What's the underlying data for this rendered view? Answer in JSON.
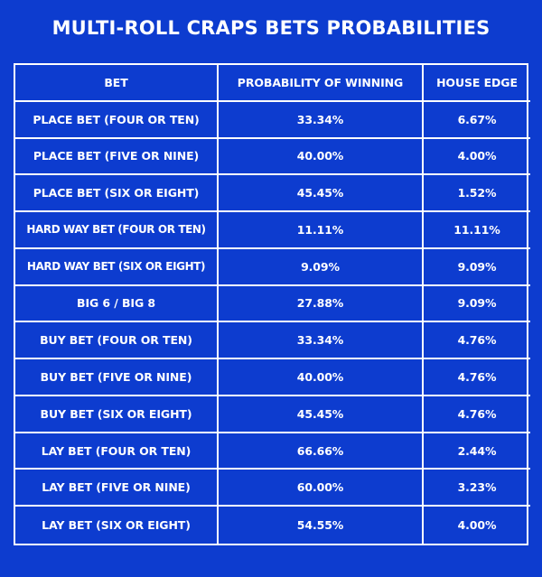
{
  "title": "MULTI-ROLL CRAPS BETS PROBABILITIES",
  "colors": {
    "background": "#0d3ccf",
    "text": "#ffffff",
    "border": "#ffffff"
  },
  "table": {
    "headers": [
      "BET",
      "PROBABILITY OF WINNING",
      "HOUSE EDGE"
    ],
    "rows": [
      {
        "bet": "PLACE BET (FOUR OR TEN)",
        "probability": "33.34%",
        "house_edge": "6.67%"
      },
      {
        "bet": "PLACE BET (FIVE OR NINE)",
        "probability": "40.00%",
        "house_edge": "4.00%"
      },
      {
        "bet": "PLACE BET (SIX OR EIGHT)",
        "probability": "45.45%",
        "house_edge": "1.52%"
      },
      {
        "bet": "HARD WAY BET (FOUR OR TEN)",
        "probability": "11.11%",
        "house_edge": "11.11%"
      },
      {
        "bet": "HARD WAY BET (SIX OR EIGHT)",
        "probability": "9.09%",
        "house_edge": "9.09%"
      },
      {
        "bet": "BIG 6 / BIG 8",
        "probability": "27.88%",
        "house_edge": "9.09%"
      },
      {
        "bet": "BUY BET (FOUR OR TEN)",
        "probability": "33.34%",
        "house_edge": "4.76%"
      },
      {
        "bet": "BUY BET (FIVE OR NINE)",
        "probability": "40.00%",
        "house_edge": "4.76%"
      },
      {
        "bet": "BUY BET (SIX OR EIGHT)",
        "probability": "45.45%",
        "house_edge": "4.76%"
      },
      {
        "bet": "LAY BET (FOUR OR TEN)",
        "probability": "66.66%",
        "house_edge": "2.44%"
      },
      {
        "bet": "LAY BET (FIVE OR NINE)",
        "probability": "60.00%",
        "house_edge": "3.23%"
      },
      {
        "bet": "LAY BET (SIX OR EIGHT)",
        "probability": "54.55%",
        "house_edge": "4.00%"
      }
    ]
  }
}
